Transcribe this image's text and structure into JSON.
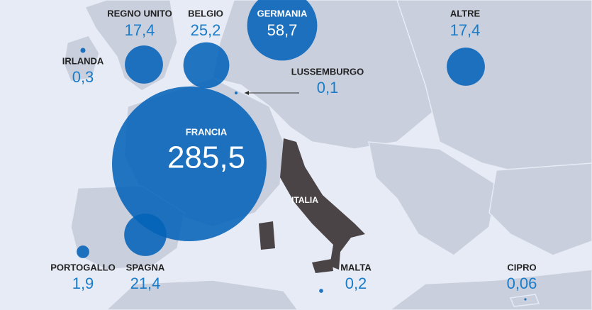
{
  "countries": [
    {
      "name": "REGNO UNITO",
      "value": 17.4,
      "value_label": "17,4"
    },
    {
      "name": "BELGIO",
      "value": 25.2,
      "value_label": "25,2"
    },
    {
      "name": "GERMANIA",
      "value": 58.7,
      "value_label": "58,7"
    },
    {
      "name": "ALTRE",
      "value": 17.4,
      "value_label": "17,4"
    },
    {
      "name": "IRLANDA",
      "value": 0.3,
      "value_label": "0,3"
    },
    {
      "name": "LUSSEMBURGO",
      "value": 0.1,
      "value_label": "0,1"
    },
    {
      "name": "FRANCIA",
      "value": 285.5,
      "value_label": "285,5"
    },
    {
      "name": "PORTOGALLO",
      "value": 1.9,
      "value_label": "1,9"
    },
    {
      "name": "SPAGNA",
      "value": 21.4,
      "value_label": "21,4"
    },
    {
      "name": "MALTA",
      "value": 0.2,
      "value_label": "0,2"
    },
    {
      "name": "CIPRO",
      "value": 0.06,
      "value_label": "0,06"
    }
  ],
  "map_labels": [
    "ITALIA"
  ]
}
